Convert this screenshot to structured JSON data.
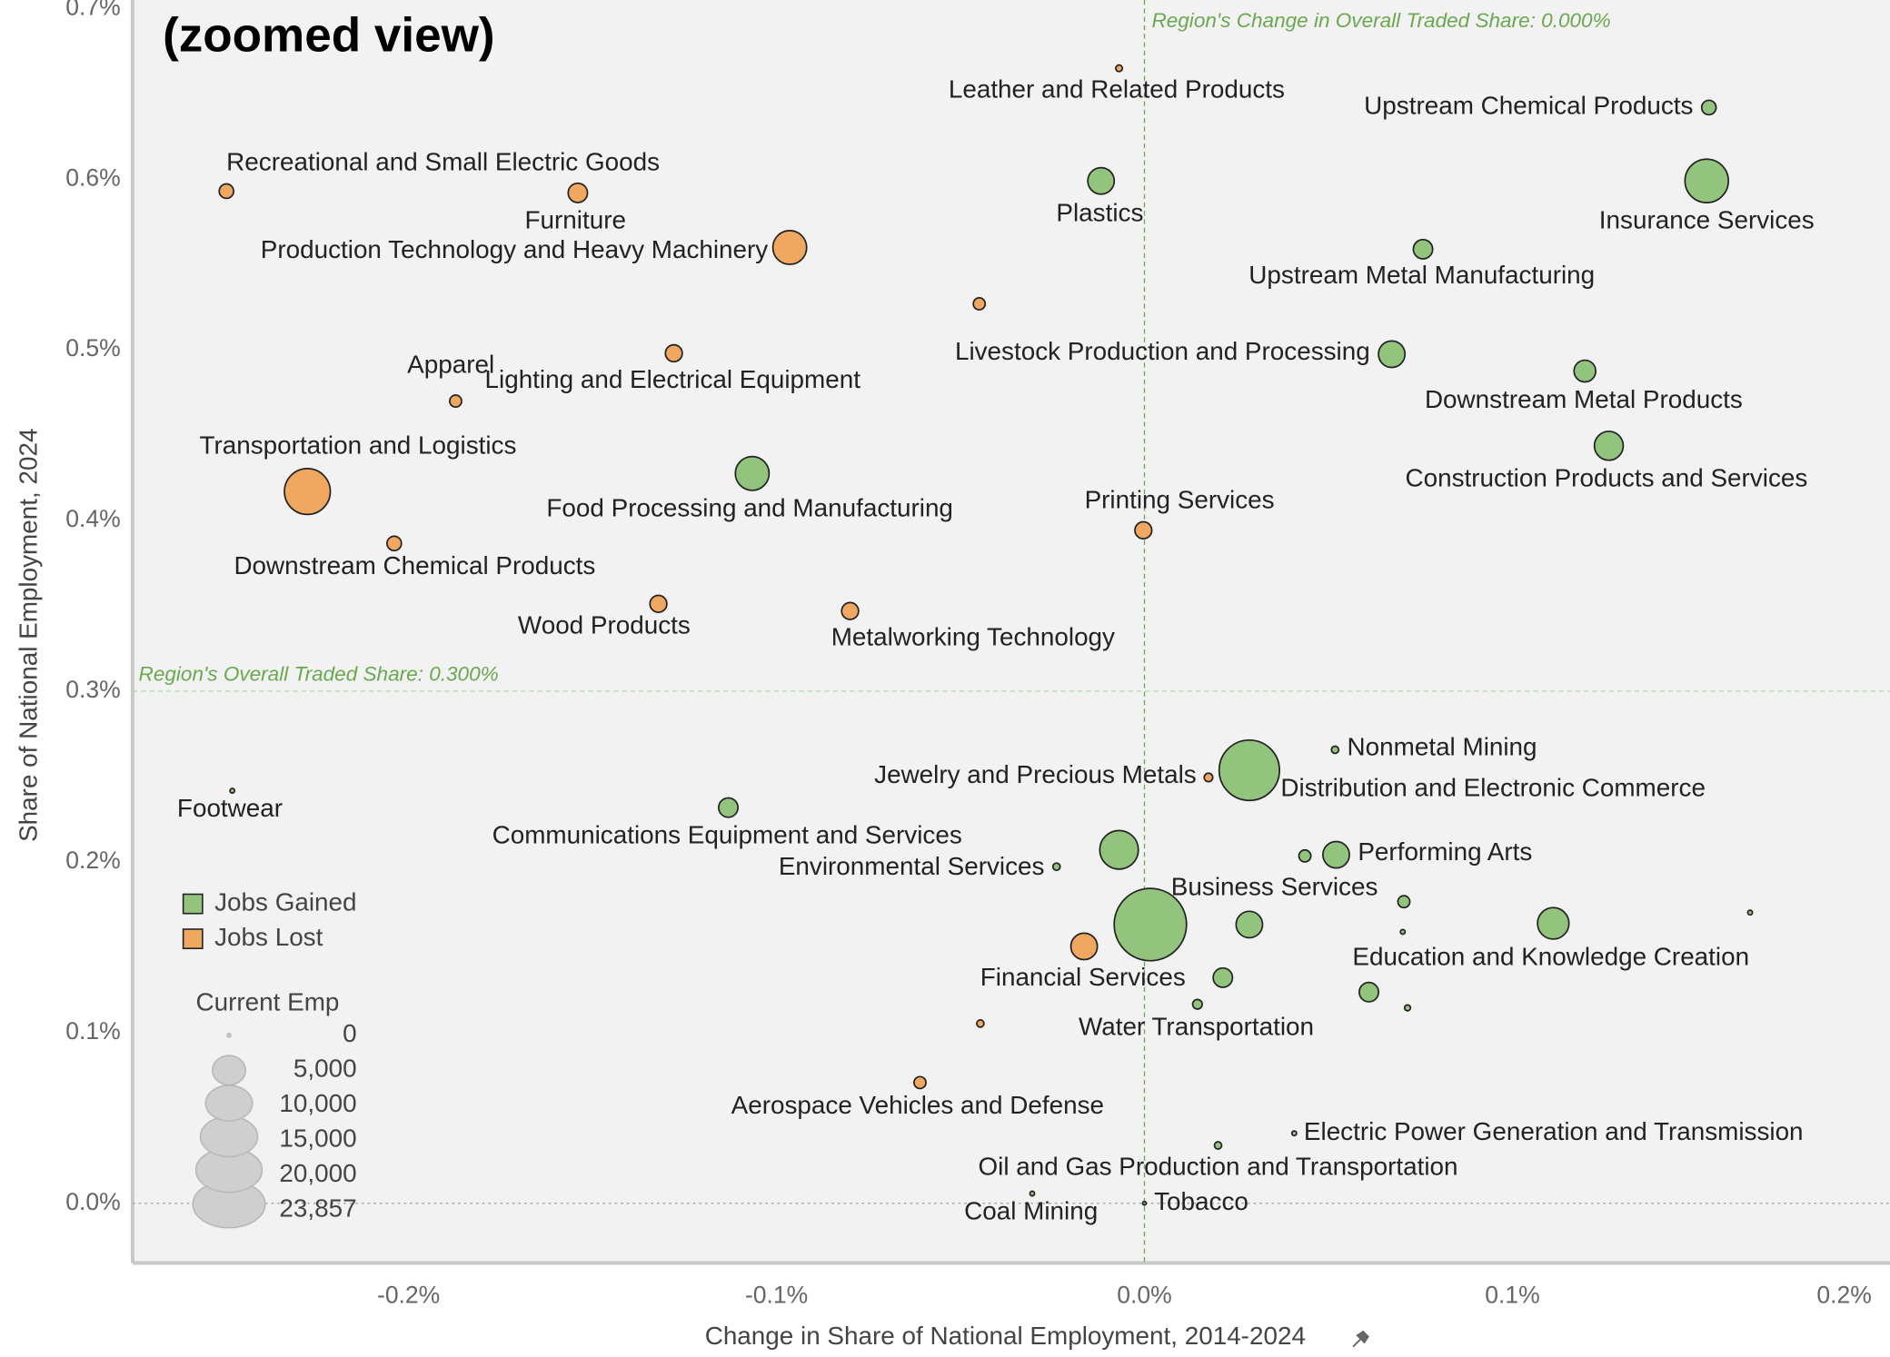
{
  "chart_data": {
    "type": "scatter",
    "title": "(zoomed view)",
    "x_label": "Change in Share of National Employment, 2014-2024",
    "y_label": "Share of National Employment, 2024",
    "xlim": [
      -0.275,
      0.2
    ],
    "ylim": [
      -0.035,
      0.705
    ],
    "xticks": [
      {
        "value": -0.2,
        "label": "-0.2%"
      },
      {
        "value": -0.1,
        "label": "-0.1%"
      },
      {
        "value": 0,
        "label": "0.0%"
      },
      {
        "value": 0.1,
        "label": "0.1%"
      },
      {
        "value": 0.2,
        "label": "0.2%"
      }
    ],
    "yticks": [
      {
        "value": 0,
        "label": "0.0%"
      },
      {
        "value": 0.1,
        "label": "0.1%"
      },
      {
        "value": 0.2,
        "label": "0.2%"
      },
      {
        "value": 0.3,
        "label": "0.3%"
      },
      {
        "value": 0.4,
        "label": "0.4%"
      },
      {
        "value": 0.5,
        "label": "0.5%"
      },
      {
        "value": 0.6,
        "label": "0.6%"
      },
      {
        "value": 0.7,
        "label": "0.7%"
      }
    ],
    "zero_line": true,
    "grid": false,
    "legend_position": "lower left",
    "reference_lines": [
      {
        "axis": "x",
        "value": 0,
        "label": "Region's Change in Overall Traded Share: 0.000%"
      },
      {
        "axis": "y",
        "value": 0.3,
        "label": "Region's Overall Traded Share: 0.300%"
      }
    ],
    "size_legend": {
      "title": "Current Emp",
      "ticks": [
        0,
        {
          "value": 5000,
          "label": "5,000"
        },
        {
          "value": 10000,
          "label": "10,000"
        },
        {
          "value": 15000,
          "label": "15,000"
        },
        {
          "value": 20000,
          "label": "20,000"
        },
        {
          "value": 23857,
          "label": "23,857"
        }
      ]
    },
    "series": [
      {
        "name": "Jobs Gained",
        "color": "#93c47d",
        "labels": [
          "Upstream Chemical Products",
          "Plastics",
          "Insurance Services",
          "Upstream Metal Manufacturing",
          "Livestock Production and Processing",
          "Downstream Metal Products",
          "Construction Products and Services",
          "Food Processing and Manufacturing",
          "Nonmetal Mining",
          "Distribution and Electronic Commerce",
          "Footwear",
          "Communications Equipment and Services",
          "Environmental Services",
          null,
          null,
          "Performing Arts",
          null,
          "Business Services",
          null,
          null,
          "Education and Knowledge Creation",
          null,
          null,
          null,
          "Water Transportation",
          null,
          "Electric Power Generation and Transmission",
          "Oil and Gas Production and Transportation",
          "Coal Mining",
          "Tobacco"
        ],
        "x": [
          0.1534,
          -0.0118,
          0.1528,
          0.0757,
          0.0672,
          0.1197,
          0.1262,
          -0.1066,
          0.0518,
          0.0285,
          -0.2479,
          -0.1131,
          -0.0239,
          -0.0069,
          0.0436,
          0.0521,
          0.0705,
          0.0016,
          0.0285,
          0.0702,
          0.1111,
          0.1646,
          0.0213,
          0.061,
          0.0144,
          0.0715,
          0.0407,
          0.02,
          -0.0305,
          0
        ],
        "values": [
          0.642,
          0.599,
          0.599,
          0.559,
          0.4975,
          0.4876,
          0.4438,
          0.4276,
          0.2657,
          0.2537,
          0.2417,
          0.2318,
          0.1972,
          0.2071,
          0.2035,
          0.2042,
          0.1767,
          0.1633,
          0.1633,
          0.159,
          0.164,
          0.1703,
          0.1322,
          0.1237,
          0.1166,
          0.1145,
          0.041,
          0.0339,
          0.0057,
          0
        ],
        "sizes": [
          950,
          3200,
          8600,
          1700,
          3200,
          2150,
          3800,
          5200,
          240,
          16600,
          100,
          1700,
          240,
          6800,
          650,
          3200,
          650,
          23857,
          3200,
          100,
          4500,
          100,
          1700,
          1700,
          420,
          160,
          100,
          240,
          100,
          60
        ]
      },
      {
        "name": "Jobs Lost",
        "color": "#f0a860",
        "labels": [
          "Leather and Related Products",
          "Recreational and Small Electric Goods",
          "Furniture",
          "Production Technology and Heavy Machinery",
          null,
          "Lighting and Electrical Equipment",
          "Apparel",
          "Transportation and Logistics",
          "Printing Services",
          "Downstream Chemical Products",
          "Wood Products",
          "Metalworking Technology",
          "Jewelry and Precious Metals",
          "Financial Services",
          null,
          "Aerospace Vehicles and Defense"
        ],
        "x": [
          -0.0069,
          -0.2495,
          -0.154,
          -0.0964,
          -0.0449,
          -0.1279,
          -0.1872,
          -0.2275,
          -0.0003,
          -0.2039,
          -0.1321,
          -0.08,
          0.0174,
          -0.0164,
          -0.0446,
          -0.061
        ],
        "values": [
          0.665,
          0.593,
          0.592,
          0.56,
          0.527,
          0.498,
          0.47,
          0.417,
          0.3943,
          0.3866,
          0.3512,
          0.347,
          0.2495,
          0.1505,
          0.1053,
          0.0707
        ],
        "sizes": [
          200,
          950,
          1700,
          5200,
          650,
          1300,
          650,
          9600,
          1300,
          950,
          1300,
          1300,
          330,
          3200,
          240,
          650
        ]
      }
    ]
  }
}
